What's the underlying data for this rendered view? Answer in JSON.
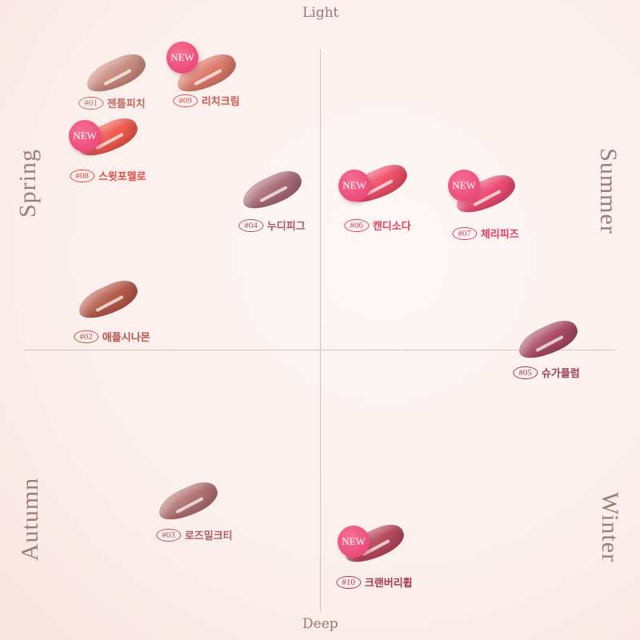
{
  "axes": {
    "top": "Light",
    "bottom": "Deep"
  },
  "seasons": {
    "top_left": "Spring",
    "top_right": "Summer",
    "bottom_left": "Autumn",
    "bottom_right": "Winter"
  },
  "badge_text": "NEW",
  "items": [
    {
      "number": "#01",
      "name": "젠틀피치",
      "is_new": false,
      "color": "#c98a7e",
      "label_color": "#c06a62"
    },
    {
      "number": "#09",
      "name": "리치크림",
      "is_new": true,
      "color": "#dc7a6a",
      "label_color": "#d0564c"
    },
    {
      "number": "#08",
      "name": "스윗포멜로",
      "is_new": true,
      "color": "#ef5a4e",
      "label_color": "#e04c44"
    },
    {
      "number": "#04",
      "name": "누디피그",
      "is_new": false,
      "color": "#a96a78",
      "label_color": "#a2566a"
    },
    {
      "number": "#06",
      "name": "캔디소다",
      "is_new": true,
      "color": "#f05068",
      "label_color": "#e0405c"
    },
    {
      "number": "#07",
      "name": "체리피즈",
      "is_new": true,
      "color": "#ec4a74",
      "label_color": "#e03c68"
    },
    {
      "number": "#02",
      "name": "애플시나몬",
      "is_new": false,
      "color": "#b55a4b",
      "label_color": "#b85448"
    },
    {
      "number": "#05",
      "name": "슈가플럼",
      "is_new": false,
      "color": "#a84a66",
      "label_color": "#9c3a56"
    },
    {
      "number": "#03",
      "name": "로즈밀크티",
      "is_new": false,
      "color": "#b07070",
      "label_color": "#b05a5e"
    },
    {
      "number": "#10",
      "name": "크랜버리휩",
      "is_new": true,
      "color": "#b84a5c",
      "label_color": "#a83a50"
    }
  ]
}
